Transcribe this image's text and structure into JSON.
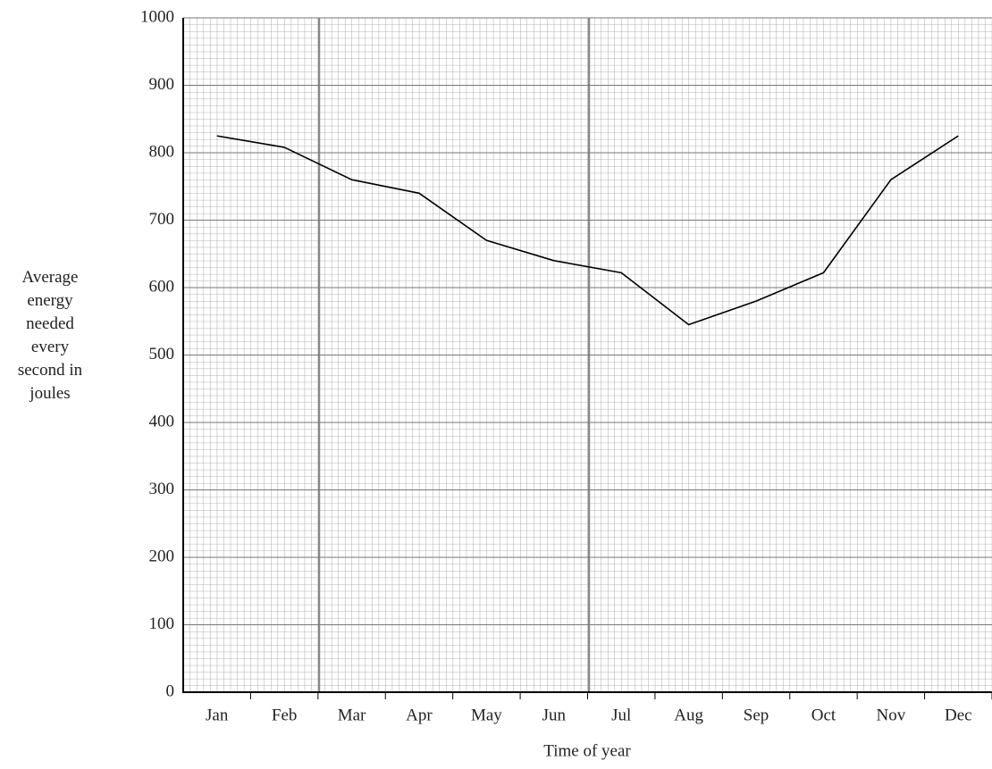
{
  "chart_data": {
    "type": "line",
    "x_label": "Time of year",
    "y_label": "Average energy needed every second in joules",
    "categories": [
      "Jan",
      "Feb",
      "Mar",
      "Apr",
      "May",
      "Jun",
      "Jul",
      "Aug",
      "Sep",
      "Oct",
      "Nov",
      "Dec"
    ],
    "series": [
      {
        "name": "Average energy",
        "color": "#000000",
        "values": [
          825,
          808,
          760,
          740,
          670,
          640,
          622,
          545,
          580,
          622,
          760,
          825
        ]
      }
    ],
    "ylim": [
      0,
      1000
    ],
    "yticks": [
      0,
      100,
      200,
      300,
      400,
      500,
      600,
      700,
      800,
      900,
      1000
    ],
    "grid": true
  }
}
